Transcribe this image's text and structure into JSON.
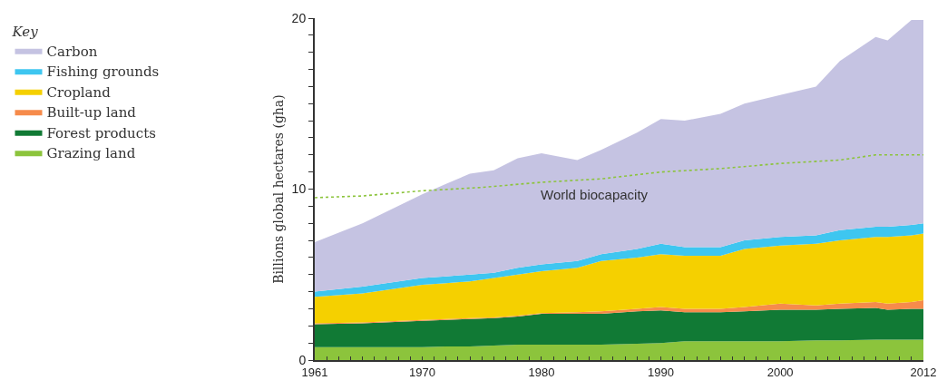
{
  "chart_data": {
    "type": "area",
    "stacked": true,
    "legend_title": "Key",
    "legend": "left",
    "ylabel": "Billions global hectares (gha)",
    "x": [
      1961,
      1965,
      1970,
      1972,
      1974,
      1976,
      1978,
      1980,
      1983,
      1985,
      1988,
      1990,
      1992,
      1995,
      1997,
      2000,
      2003,
      2005,
      2008,
      2009,
      2011,
      2012
    ],
    "xlim": [
      1961,
      2012
    ],
    "ylim": [
      0,
      20
    ],
    "xticks": [
      1961,
      {
        "value": 1962,
        "label": null
      },
      {
        "value": 1963,
        "label": null
      },
      {
        "value": 1964,
        "label": null
      },
      {
        "value": 1965,
        "label": null
      },
      {
        "value": 1966,
        "label": null
      },
      {
        "value": 1967,
        "label": null
      },
      {
        "value": 1968,
        "label": null
      },
      {
        "value": 1969,
        "label": null
      },
      1970,
      {
        "value": 1971,
        "label": null
      },
      {
        "value": 1972,
        "label": null
      },
      {
        "value": 1973,
        "label": null
      },
      {
        "value": 1974,
        "label": null
      },
      {
        "value": 1975,
        "label": null
      },
      {
        "value": 1976,
        "label": null
      },
      {
        "value": 1977,
        "label": null
      },
      {
        "value": 1978,
        "label": null
      },
      {
        "value": 1979,
        "label": null
      },
      1980,
      {
        "value": 1981,
        "label": null
      },
      {
        "value": 1982,
        "label": null
      },
      {
        "value": 1983,
        "label": null
      },
      {
        "value": 1984,
        "label": null
      },
      {
        "value": 1985,
        "label": null
      },
      {
        "value": 1986,
        "label": null
      },
      {
        "value": 1987,
        "label": null
      },
      {
        "value": 1988,
        "label": null
      },
      {
        "value": 1989,
        "label": null
      },
      1990,
      {
        "value": 1991,
        "label": null
      },
      {
        "value": 1992,
        "label": null
      },
      {
        "value": 1993,
        "label": null
      },
      {
        "value": 1994,
        "label": null
      },
      {
        "value": 1995,
        "label": null
      },
      {
        "value": 1996,
        "label": null
      },
      {
        "value": 1997,
        "label": null
      },
      {
        "value": 1998,
        "label": null
      },
      {
        "value": 1999,
        "label": null
      },
      2000,
      {
        "value": 2001,
        "label": null
      },
      {
        "value": 2002,
        "label": null
      },
      {
        "value": 2003,
        "label": null
      },
      {
        "value": 2004,
        "label": null
      },
      {
        "value": 2005,
        "label": null
      },
      {
        "value": 2006,
        "label": null
      },
      {
        "value": 2007,
        "label": null
      },
      {
        "value": 2008,
        "label": null
      },
      {
        "value": 2009,
        "label": null
      },
      {
        "value": 2010,
        "label": null
      },
      {
        "value": 2011,
        "label": null
      },
      2012
    ],
    "yticks": [
      0,
      {
        "value": 1,
        "label": null
      },
      {
        "value": 2,
        "label": null
      },
      {
        "value": 3,
        "label": null
      },
      {
        "value": 4,
        "label": null
      },
      {
        "value": 5,
        "label": null
      },
      {
        "value": 6,
        "label": null
      },
      {
        "value": 7,
        "label": null
      },
      {
        "value": 8,
        "label": null
      },
      {
        "value": 9,
        "label": null
      },
      10,
      {
        "value": 11,
        "label": null
      },
      {
        "value": 12,
        "label": null
      },
      {
        "value": 13,
        "label": null
      },
      {
        "value": 14,
        "label": null
      },
      {
        "value": 15,
        "label": null
      },
      {
        "value": 16,
        "label": null
      },
      {
        "value": 17,
        "label": null
      },
      {
        "value": 18,
        "label": null
      },
      {
        "value": 19,
        "label": null
      },
      20
    ],
    "series": [
      {
        "name": "Grazing land",
        "color": "#8cc43c",
        "values": [
          0.75,
          0.75,
          0.75,
          0.8,
          0.8,
          0.85,
          0.9,
          0.9,
          0.9,
          0.9,
          0.95,
          1.0,
          1.1,
          1.1,
          1.1,
          1.1,
          1.15,
          1.15,
          1.2,
          1.2,
          1.2,
          1.2
        ]
      },
      {
        "name": "Forest products",
        "color": "#117a35",
        "values": [
          1.35,
          1.4,
          1.55,
          1.55,
          1.6,
          1.6,
          1.65,
          1.8,
          1.8,
          1.8,
          1.9,
          1.9,
          1.7,
          1.7,
          1.75,
          1.85,
          1.8,
          1.85,
          1.85,
          1.75,
          1.8,
          1.8
        ]
      },
      {
        "name": "Built-up land",
        "color": "#f68b4b",
        "values": [
          0.05,
          0.05,
          0.05,
          0.05,
          0.05,
          0.05,
          0.05,
          0.05,
          0.1,
          0.15,
          0.15,
          0.2,
          0.2,
          0.2,
          0.25,
          0.35,
          0.25,
          0.3,
          0.35,
          0.35,
          0.4,
          0.5
        ]
      },
      {
        "name": "Cropland",
        "color": "#f5d000",
        "values": [
          1.55,
          1.7,
          2.05,
          2.1,
          2.15,
          2.3,
          2.4,
          2.45,
          2.6,
          2.95,
          3.0,
          3.1,
          3.1,
          3.1,
          3.4,
          3.4,
          3.6,
          3.7,
          3.8,
          3.9,
          3.9,
          3.9
        ]
      },
      {
        "name": "Fishing grounds",
        "color": "#3ec6f0",
        "values": [
          0.3,
          0.4,
          0.4,
          0.4,
          0.4,
          0.3,
          0.4,
          0.4,
          0.4,
          0.4,
          0.5,
          0.6,
          0.5,
          0.5,
          0.5,
          0.5,
          0.5,
          0.6,
          0.6,
          0.6,
          0.6,
          0.6
        ]
      },
      {
        "name": "Carbon",
        "color": "#c5c3e2",
        "values": [
          2.9,
          3.7,
          4.9,
          5.4,
          5.9,
          6.0,
          6.4,
          6.5,
          5.9,
          6.1,
          6.8,
          7.3,
          7.4,
          7.8,
          8.0,
          8.3,
          8.7,
          9.9,
          11.1,
          10.9,
          12.0,
          11.9
        ]
      },
      {
        "type": "line",
        "line_style": "dotted",
        "color": "#8cc43c",
        "x": [
          1961,
          1965,
          1970,
          1975,
          1980,
          1985,
          1990,
          1995,
          2000,
          2005,
          2008,
          2012
        ],
        "values": [
          9.5,
          9.6,
          9.9,
          10.1,
          10.4,
          10.6,
          11.0,
          11.2,
          11.5,
          11.7,
          12.0,
          12.0
        ]
      }
    ],
    "annotations": [
      "World biocapacity"
    ]
  }
}
